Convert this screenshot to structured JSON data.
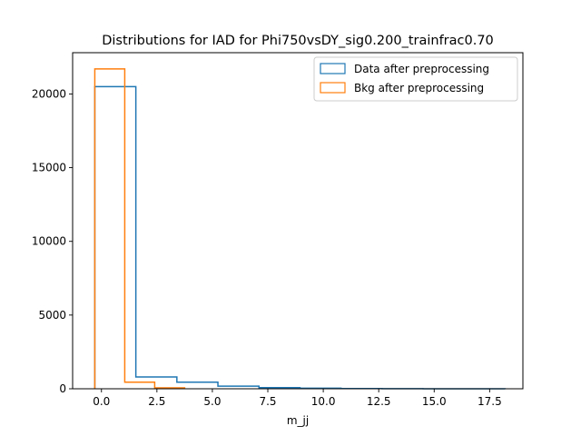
{
  "chart_data": {
    "type": "histogram-step",
    "title": "Distributions for IAD for Phi750vsDY_sig0.200_trainfrac0.70",
    "xlabel": "m_jj",
    "ylabel": "",
    "xlim": [
      -1.3,
      19.0
    ],
    "ylim": [
      0,
      22800
    ],
    "xticks": [
      0.0,
      2.5,
      5.0,
      7.5,
      10.0,
      12.5,
      15.0,
      17.5
    ],
    "xtick_labels": [
      "0.0",
      "2.5",
      "5.0",
      "7.5",
      "10.0",
      "12.5",
      "15.0",
      "17.5"
    ],
    "yticks": [
      0,
      5000,
      10000,
      15000,
      20000
    ],
    "ytick_labels": [
      "0",
      "5000",
      "10000",
      "15000",
      "20000"
    ],
    "grid": false,
    "legend_position": "top-right",
    "series": [
      {
        "name": "Data after preprocessing",
        "color": "#1f77b4",
        "bin_edges": [
          -0.3,
          1.55,
          3.4,
          5.25,
          7.1,
          8.95,
          10.8,
          12.65,
          14.5,
          16.35,
          18.2
        ],
        "counts": [
          20500,
          800,
          450,
          180,
          80,
          40,
          15,
          6,
          3,
          2
        ]
      },
      {
        "name": "Bkg after preprocessing",
        "color": "#ff7f0e",
        "bin_edges": [
          -0.3,
          1.05,
          2.4,
          3.75
        ],
        "counts": [
          21700,
          450,
          60
        ]
      }
    ]
  }
}
